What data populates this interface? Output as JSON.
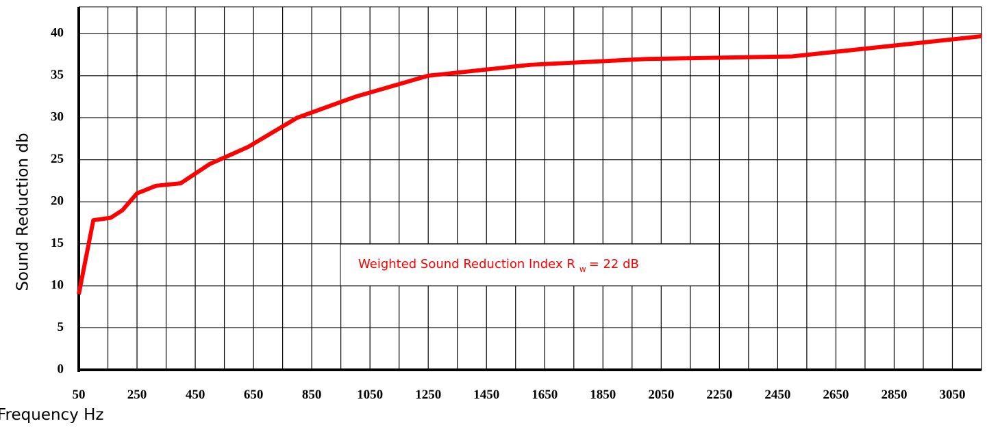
{
  "chart_data": {
    "type": "line",
    "y_label": "Sound Reduction db",
    "x_label": "Frequency Hz",
    "annotation": {
      "text": "Weighted Sound Reduction Index R",
      "subscript": "w",
      "suffix": "= 22 dB"
    },
    "x": [
      50,
      100,
      160,
      200,
      250,
      315,
      400,
      500,
      630,
      800,
      1000,
      1250,
      1600,
      2000,
      2500,
      3150
    ],
    "values": [
      9,
      17.8,
      18.1,
      19,
      21,
      21.9,
      22.2,
      24.5,
      26.5,
      30,
      32.5,
      35,
      36.3,
      37,
      37.3,
      39.7
    ],
    "color": "#ff0000",
    "xlim": [
      50,
      3150
    ],
    "ylim": [
      0,
      43.2
    ],
    "xticks": [
      50,
      250,
      450,
      650,
      850,
      1050,
      1250,
      1450,
      1650,
      1850,
      2050,
      2250,
      2450,
      2650,
      2850,
      3050
    ],
    "minor_xticks": [
      150,
      350,
      550,
      750,
      950,
      1150,
      1350,
      1550,
      1750,
      1950,
      2150,
      2350,
      2550,
      2750,
      2950,
      3150
    ],
    "yticks": [
      0,
      5,
      10,
      15,
      20,
      25,
      30,
      35,
      40
    ],
    "grid": true
  }
}
